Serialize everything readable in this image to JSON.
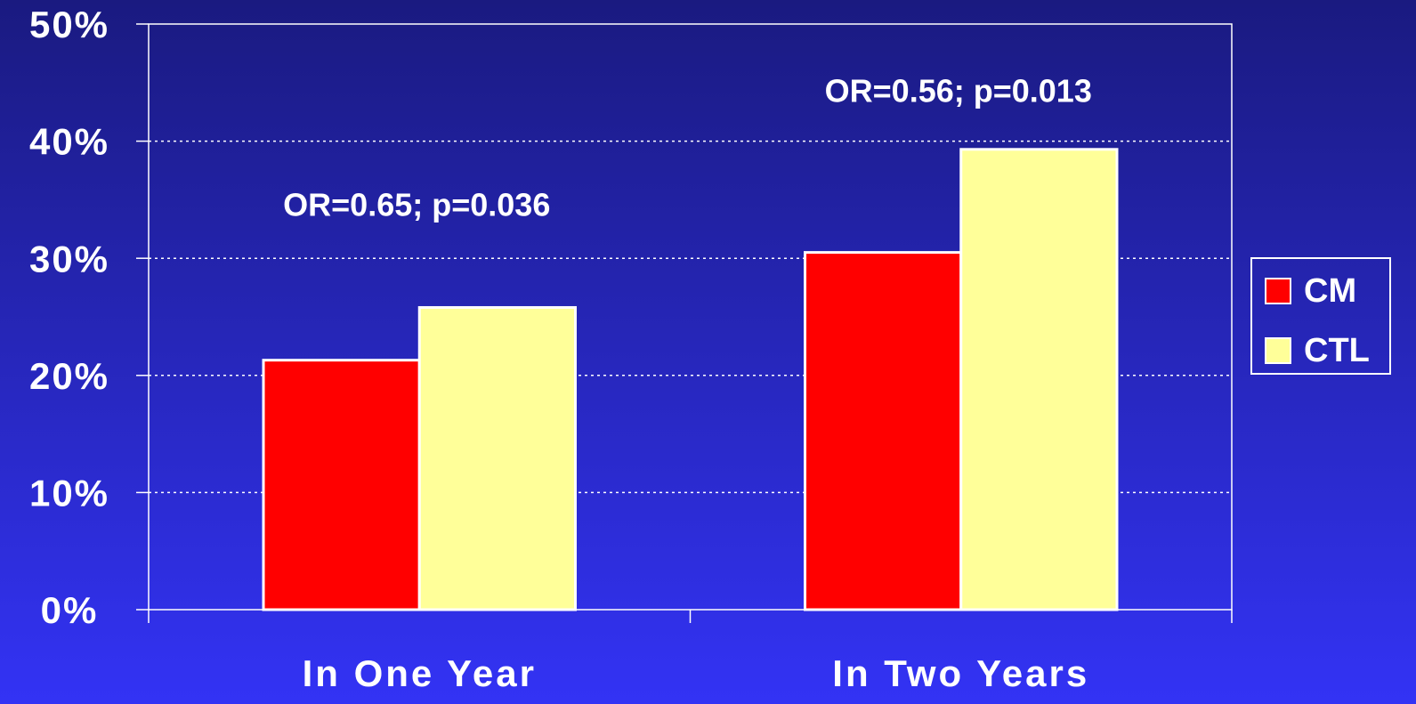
{
  "chart_data": {
    "type": "bar",
    "categories": [
      "In One Year",
      "In Two Years"
    ],
    "series": [
      {
        "name": "CM",
        "color": "#ff0000",
        "values": [
          21.3,
          30.5
        ]
      },
      {
        "name": "CTL",
        "color": "#ffff99",
        "values": [
          25.8,
          39.3
        ]
      }
    ],
    "annotations": [
      "OR=0.65; p=0.036",
      "OR=0.56; p=0.013"
    ],
    "ylim": [
      0,
      50
    ],
    "yticks": [
      {
        "value": 0,
        "label": "0%"
      },
      {
        "value": 10,
        "label": "10%"
      },
      {
        "value": 20,
        "label": "20%"
      },
      {
        "value": 30,
        "label": "30%"
      },
      {
        "value": 40,
        "label": "40%"
      },
      {
        "value": 50,
        "label": "50%"
      }
    ],
    "grid": true,
    "legend": "right"
  }
}
